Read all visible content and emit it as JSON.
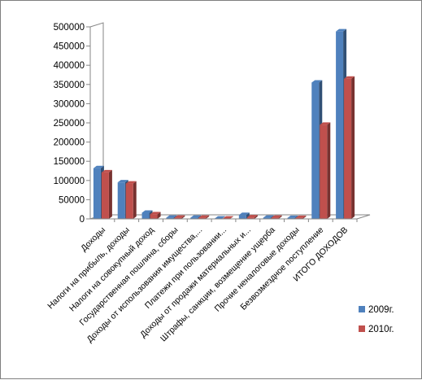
{
  "chart_data": {
    "type": "bar",
    "title": "",
    "xlabel": "",
    "ylabel": "",
    "ylim": [
      0,
      500000
    ],
    "yticks": [
      0,
      50000,
      100000,
      150000,
      200000,
      250000,
      300000,
      350000,
      400000,
      450000,
      500000
    ],
    "ytick_labels": [
      "0",
      "50000",
      "100000",
      "150000",
      "200000",
      "250000",
      "300000",
      "350000",
      "400000",
      "450000",
      "500000"
    ],
    "grid": false,
    "legend_position": "right",
    "categories": [
      "Доходы",
      "Налоги на прибыль, доходы",
      "Налоги на совокупный доход",
      "Государственная пошлина, сборы",
      "Доходы от использования имущества,...",
      "Платежи при пользовании...",
      "Доходы от продажи материальных и...",
      "Штрафы, санкции, возмещение ущерба",
      "Прочие неналоговые доходы",
      "Безвозмездное поступление",
      "ИТОГО ДОХОДОВ"
    ],
    "series": [
      {
        "name": "2009г.",
        "color": "#4f81bd",
        "values": [
          132000,
          95000,
          16000,
          3000,
          3000,
          800,
          10000,
          3000,
          2500,
          355000,
          488000
        ]
      },
      {
        "name": "2010г.",
        "color": "#c0504d",
        "values": [
          121000,
          92000,
          12000,
          3000,
          3000,
          800,
          4000,
          3000,
          2500,
          245000,
          365000
        ]
      }
    ]
  }
}
